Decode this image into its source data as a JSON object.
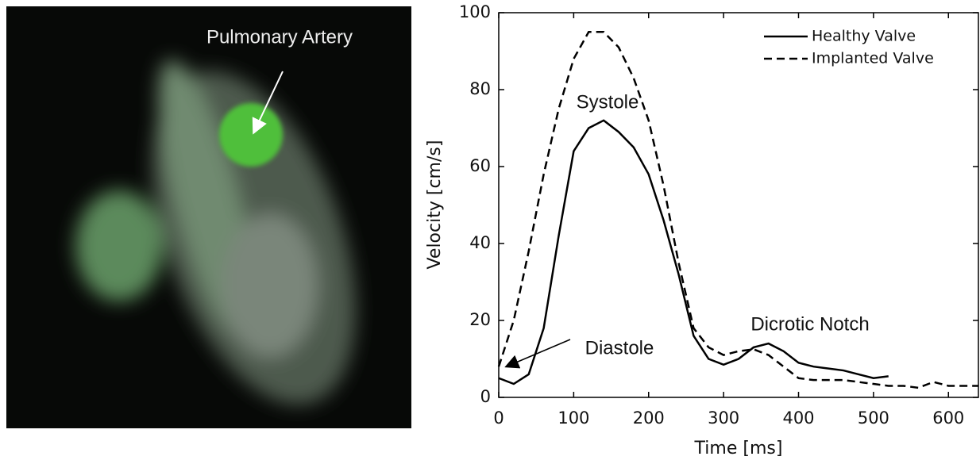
{
  "image": {
    "label": "Pulmonary Artery"
  },
  "chart_data": {
    "type": "line",
    "xlabel": "Time [ms]",
    "ylabel": "Velocity [cm/s]",
    "annotations": [
      "Systole",
      "Dicrotic Notch",
      "Diastole"
    ],
    "xlim": [
      0,
      640
    ],
    "ylim": [
      0,
      100
    ],
    "xticks": [
      0,
      100,
      200,
      300,
      400,
      500,
      600
    ],
    "yticks": [
      0,
      20,
      40,
      60,
      80,
      100
    ],
    "legend": "upper right",
    "series": [
      {
        "name": "Healthy Valve",
        "color": "#000000",
        "dash": "solid",
        "x": [
          0,
          20,
          40,
          60,
          80,
          100,
          120,
          140,
          160,
          180,
          200,
          220,
          240,
          260,
          280,
          300,
          320,
          340,
          360,
          380,
          400,
          420,
          440,
          460,
          480,
          500,
          520
        ],
        "values": [
          5,
          3.5,
          6,
          18,
          42,
          64,
          70,
          72,
          69,
          65,
          58,
          46,
          32,
          16,
          10,
          8.5,
          10,
          13,
          14,
          12,
          9,
          8,
          7.5,
          7,
          6,
          5,
          5.5
        ]
      },
      {
        "name": "Implanted Valve",
        "color": "#000000",
        "dash": "dashed",
        "x": [
          0,
          20,
          40,
          60,
          80,
          100,
          120,
          140,
          160,
          180,
          200,
          220,
          240,
          260,
          280,
          300,
          320,
          340,
          360,
          380,
          400,
          420,
          440,
          460,
          480,
          500,
          520,
          540,
          560,
          580,
          600,
          620,
          640
        ],
        "values": [
          8,
          20,
          38,
          58,
          75,
          88,
          95,
          95,
          91,
          83,
          72,
          55,
          35,
          18,
          13,
          11,
          12,
          12.5,
          11,
          8,
          5,
          4.5,
          4.5,
          4.5,
          4,
          3.5,
          3,
          3,
          2.5,
          4,
          3,
          3,
          3
        ]
      }
    ]
  }
}
